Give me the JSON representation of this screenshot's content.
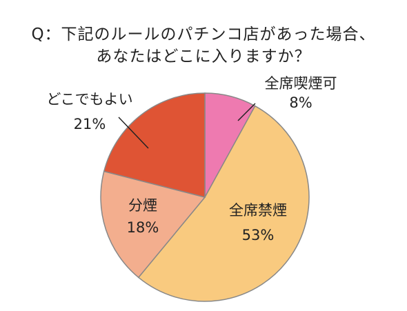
{
  "chart_data": {
    "type": "pie",
    "title_lines": [
      "Q：下記のルールのパチンコ店があった場合、",
      "あなたはどこに入りますか？"
    ],
    "slices": [
      {
        "label": "全席喫煙可",
        "value": 8,
        "value_label": "8%",
        "color": "#EE7AB0"
      },
      {
        "label": "全席禁煙",
        "value": 53,
        "value_label": "53%",
        "color": "#F9CA7F"
      },
      {
        "label": "分煙",
        "value": 18,
        "value_label": "18%",
        "color": "#F3AE8E"
      },
      {
        "label": "どこでもよい",
        "value": 21,
        "value_label": "21%",
        "color": "#DF5434"
      }
    ],
    "start_angle": "12 o'clock",
    "direction": "clockwise",
    "slice_border_color": "#888888"
  }
}
